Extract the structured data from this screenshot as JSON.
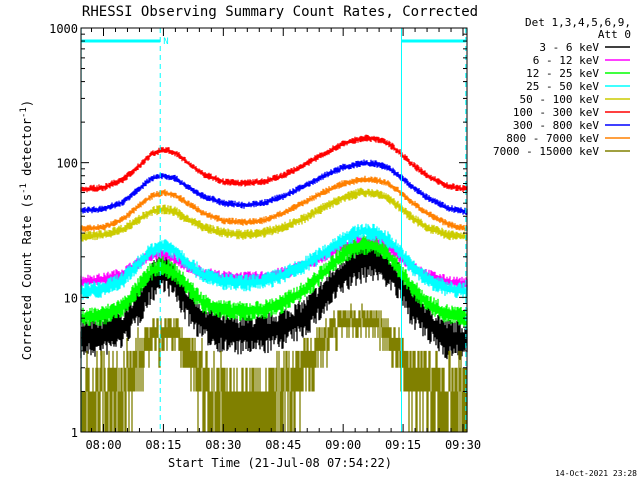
{
  "chart_data": {
    "type": "line",
    "title": "RHESSI Observing Summary Count Rates, Corrected",
    "xlabel": "Start Time (21-Jul-08 07:54:22)",
    "ylabel_parts": [
      "Corrected Count Rate (s",
      "-1",
      " detector",
      "-1",
      ")"
    ],
    "y_scale": "log",
    "ylim": [
      1,
      1000
    ],
    "y_ticks": [
      {
        "value": 1,
        "label": "1"
      },
      {
        "value": 10,
        "label": "10"
      },
      {
        "value": 100,
        "label": "100"
      },
      {
        "value": 1000,
        "label": "1000"
      }
    ],
    "x_range_minutes": [
      "07:54",
      "09:31"
    ],
    "x_ticks": [
      {
        "minute": 480,
        "label": "08:00"
      },
      {
        "minute": 495,
        "label": "08:15"
      },
      {
        "minute": 510,
        "label": "08:30"
      },
      {
        "minute": 525,
        "label": "08:45"
      },
      {
        "minute": 540,
        "label": "09:00"
      },
      {
        "minute": 555,
        "label": "09:15"
      },
      {
        "minute": 570,
        "label": "09:30"
      }
    ],
    "legend_header": [
      "Det 1,3,4,5,6,9,",
      "Att 0"
    ],
    "legend_placement": "right",
    "series": [
      {
        "name": "3 - 6 keV",
        "color": "#000000",
        "points": [
          [
            474,
            5
          ],
          [
            480,
            5.2
          ],
          [
            485,
            6
          ],
          [
            489,
            9
          ],
          [
            492,
            13
          ],
          [
            495,
            16
          ],
          [
            498,
            13
          ],
          [
            501,
            9
          ],
          [
            505,
            6.5
          ],
          [
            510,
            5.5
          ],
          [
            515,
            5.3
          ],
          [
            520,
            5.4
          ],
          [
            525,
            6
          ],
          [
            530,
            7
          ],
          [
            535,
            10
          ],
          [
            540,
            15
          ],
          [
            545,
            18.5
          ],
          [
            548,
            19
          ],
          [
            551,
            17
          ],
          [
            554,
            13
          ],
          [
            557,
            9
          ],
          [
            561,
            6.5
          ],
          [
            566,
            5
          ],
          [
            571,
            4.8
          ]
        ]
      },
      {
        "name": "6 - 12 keV",
        "color": "#ff00ff",
        "points": [
          [
            474,
            13
          ],
          [
            480,
            13.5
          ],
          [
            485,
            15
          ],
          [
            489,
            18
          ],
          [
            492,
            20.5
          ],
          [
            495,
            21
          ],
          [
            498,
            19
          ],
          [
            501,
            17
          ],
          [
            505,
            15
          ],
          [
            510,
            14
          ],
          [
            515,
            13.8
          ],
          [
            520,
            14
          ],
          [
            525,
            15
          ],
          [
            530,
            17
          ],
          [
            535,
            20
          ],
          [
            540,
            24
          ],
          [
            545,
            26.5
          ],
          [
            548,
            26
          ],
          [
            551,
            24
          ],
          [
            554,
            20
          ],
          [
            557,
            17
          ],
          [
            561,
            14.5
          ],
          [
            566,
            13
          ],
          [
            571,
            12.5
          ]
        ]
      },
      {
        "name": "12 - 25 keV",
        "color": "#00ff00",
        "points": [
          [
            474,
            7
          ],
          [
            480,
            7.3
          ],
          [
            485,
            8.5
          ],
          [
            489,
            12
          ],
          [
            492,
            15.5
          ],
          [
            495,
            17
          ],
          [
            498,
            15
          ],
          [
            501,
            12
          ],
          [
            505,
            9
          ],
          [
            510,
            8
          ],
          [
            515,
            7.8
          ],
          [
            520,
            8
          ],
          [
            525,
            9
          ],
          [
            530,
            11
          ],
          [
            535,
            15
          ],
          [
            540,
            21
          ],
          [
            545,
            24.5
          ],
          [
            548,
            24
          ],
          [
            551,
            21
          ],
          [
            554,
            16
          ],
          [
            557,
            12
          ],
          [
            561,
            9
          ],
          [
            566,
            7.5
          ],
          [
            571,
            7
          ]
        ]
      },
      {
        "name": "25 - 50 keV",
        "color": "#00ffff",
        "points": [
          [
            474,
            11
          ],
          [
            480,
            11.5
          ],
          [
            485,
            13.5
          ],
          [
            489,
            18
          ],
          [
            492,
            22
          ],
          [
            495,
            24
          ],
          [
            498,
            22
          ],
          [
            501,
            18
          ],
          [
            505,
            14.5
          ],
          [
            510,
            13
          ],
          [
            515,
            12.7
          ],
          [
            520,
            13
          ],
          [
            525,
            14.5
          ],
          [
            530,
            17
          ],
          [
            535,
            21
          ],
          [
            540,
            27
          ],
          [
            545,
            31
          ],
          [
            548,
            30
          ],
          [
            551,
            27
          ],
          [
            554,
            22
          ],
          [
            557,
            17
          ],
          [
            561,
            13.5
          ],
          [
            566,
            11.5
          ],
          [
            571,
            11
          ]
        ]
      },
      {
        "name": "50 - 100 keV",
        "color": "#cccc00",
        "points": [
          [
            474,
            28
          ],
          [
            480,
            29
          ],
          [
            485,
            32
          ],
          [
            489,
            38
          ],
          [
            492,
            43
          ],
          [
            495,
            45
          ],
          [
            498,
            43
          ],
          [
            501,
            38
          ],
          [
            505,
            33
          ],
          [
            510,
            30
          ],
          [
            515,
            29
          ],
          [
            520,
            30
          ],
          [
            525,
            33
          ],
          [
            530,
            38
          ],
          [
            535,
            46
          ],
          [
            540,
            55
          ],
          [
            545,
            60
          ],
          [
            548,
            59
          ],
          [
            551,
            55
          ],
          [
            554,
            47
          ],
          [
            557,
            39
          ],
          [
            561,
            33
          ],
          [
            566,
            29
          ],
          [
            571,
            28
          ]
        ]
      },
      {
        "name": "100 - 300 keV",
        "color": "#ff0000",
        "points": [
          [
            474,
            63
          ],
          [
            480,
            65
          ],
          [
            485,
            75
          ],
          [
            489,
            95
          ],
          [
            492,
            115
          ],
          [
            495,
            125
          ],
          [
            498,
            118
          ],
          [
            501,
            100
          ],
          [
            505,
            82
          ],
          [
            510,
            72
          ],
          [
            515,
            70
          ],
          [
            520,
            72
          ],
          [
            525,
            80
          ],
          [
            530,
            95
          ],
          [
            535,
            115
          ],
          [
            540,
            138
          ],
          [
            545,
            152
          ],
          [
            548,
            150
          ],
          [
            551,
            140
          ],
          [
            554,
            120
          ],
          [
            557,
            98
          ],
          [
            561,
            80
          ],
          [
            566,
            67
          ],
          [
            571,
            63
          ]
        ]
      },
      {
        "name": "300 - 800 keV",
        "color": "#0000ff",
        "points": [
          [
            474,
            44
          ],
          [
            480,
            45
          ],
          [
            485,
            51
          ],
          [
            489,
            64
          ],
          [
            492,
            76
          ],
          [
            495,
            80
          ],
          [
            498,
            76
          ],
          [
            501,
            66
          ],
          [
            505,
            56
          ],
          [
            510,
            50
          ],
          [
            515,
            48
          ],
          [
            520,
            50
          ],
          [
            525,
            56
          ],
          [
            530,
            66
          ],
          [
            535,
            79
          ],
          [
            540,
            92
          ],
          [
            545,
            99
          ],
          [
            548,
            98
          ],
          [
            551,
            92
          ],
          [
            554,
            80
          ],
          [
            557,
            67
          ],
          [
            561,
            55
          ],
          [
            566,
            46
          ],
          [
            571,
            43
          ]
        ]
      },
      {
        "name": "800 - 7000 keV",
        "color": "#ff8000",
        "points": [
          [
            474,
            32
          ],
          [
            480,
            33
          ],
          [
            485,
            38
          ],
          [
            489,
            48
          ],
          [
            492,
            56
          ],
          [
            495,
            60
          ],
          [
            498,
            57
          ],
          [
            501,
            50
          ],
          [
            505,
            42
          ],
          [
            510,
            37
          ],
          [
            515,
            36
          ],
          [
            520,
            37
          ],
          [
            525,
            42
          ],
          [
            530,
            50
          ],
          [
            535,
            60
          ],
          [
            540,
            70
          ],
          [
            545,
            75
          ],
          [
            548,
            74
          ],
          [
            551,
            70
          ],
          [
            554,
            61
          ],
          [
            557,
            51
          ],
          [
            561,
            42
          ],
          [
            566,
            35
          ],
          [
            571,
            32
          ]
        ]
      },
      {
        "name": "7000 - 15000 keV",
        "color": "#808000",
        "points": [
          [
            474,
            1.8
          ],
          [
            480,
            1.9
          ],
          [
            485,
            2.4
          ],
          [
            488,
            3.4
          ],
          [
            491,
            4.6
          ],
          [
            494,
            5.4
          ],
          [
            497,
            5.6
          ],
          [
            499,
            5
          ],
          [
            502,
            3.7
          ],
          [
            505,
            2.6
          ],
          [
            509,
            1.9
          ],
          [
            514,
            1.6
          ],
          [
            520,
            1.6
          ],
          [
            525,
            1.8
          ],
          [
            529,
            2.5
          ],
          [
            532,
            3.6
          ],
          [
            535,
            5
          ],
          [
            539,
            6.3
          ],
          [
            543,
            6.8
          ],
          [
            547,
            6.7
          ],
          [
            550,
            5.8
          ],
          [
            553,
            4.2
          ],
          [
            557,
            2.8
          ],
          [
            562,
            2
          ],
          [
            567,
            1.8
          ],
          [
            571,
            1.7
          ]
        ]
      }
    ],
    "annotations": {
      "flag_marker_label": "N",
      "dashed_markers_minutes": [
        494.2,
        570.7
      ],
      "solid_markers_minutes": [
        474.4,
        554.6
      ],
      "flag_bars_minutes": [
        [
          474.4,
          494.2
        ],
        [
          554.6,
          570.7
        ]
      ]
    },
    "footer_date": "14-Oct-2021 23:28"
  }
}
